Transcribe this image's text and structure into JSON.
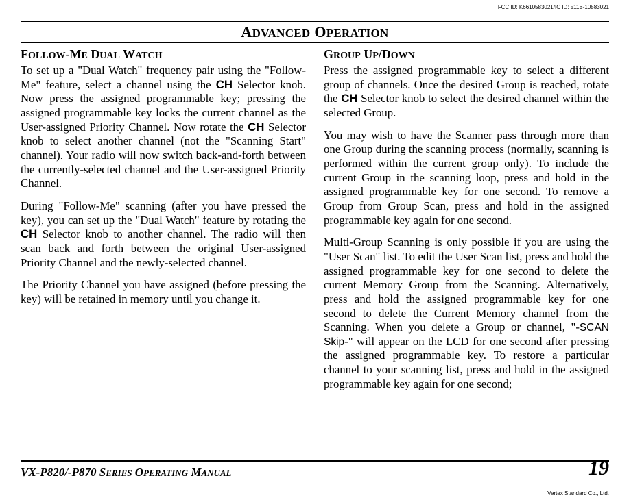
{
  "fcc": "FCC ID: K6610583021/IC ID: 511B-10583021",
  "title_main1": "A",
  "title_rest1": "DVANCED",
  "title_main2": "O",
  "title_rest2": "PERATION",
  "left": {
    "h_w1a": "F",
    "h_w1b": "OLLOW",
    "h_hy": "-M",
    "h_w2": "E",
    "h_w3a": "D",
    "h_w3b": "UAL",
    "h_w4a": "W",
    "h_w4b": "ATCH",
    "p1a": "To set up a \"Dual Watch\" frequency pair using the \"Follow-Me\" feature, select a channel using the ",
    "p1b": " Selector knob. Now press the assigned programmable key; pressing the assigned programmable key locks the current channel as the User-assigned Priority Channel. Now rotate the ",
    "p1c": " Selector knob to select another channel (not the \"Scanning Start\" channel). Your radio will now switch back-and-forth between the currently-selected channel and the User-assigned Priority Channel.",
    "p2a": "During \"Follow-Me\" scanning (after you have pressed the key), you can set up the \"Dual Watch\" feature by rotating the ",
    "p2b": " Selector knob to another channel. The radio will then scan back and forth between the original User-assigned Priority Channel and the newly-selected channel.",
    "p3": "The Priority Channel you have assigned (before pressing the key) will be retained in memory until you change it."
  },
  "right": {
    "h_w1a": "G",
    "h_w1b": "ROUP",
    "h_w2a": "U",
    "h_w2b": "P",
    "h_sl": "/D",
    "h_w3": "OWN",
    "p1a": "Press the assigned programmable key to select a different group of channels. Once the desired Group is reached, rotate the ",
    "p1b": " Selector knob to select the desired channel within the selected Group.",
    "p2": "You may wish to have the Scanner pass through more than one Group during the scanning process (normally, scanning is performed within the current group only). To include the current Group in the scanning loop, press and hold in the assigned programmable key for one second. To remove a Group from Group Scan, press and hold in the assigned programmable key again for one second.",
    "p3a": "Multi-Group Scanning is only possible if you are using the \"User Scan\" list. To edit the User Scan list, press and hold the assigned programmable key for one second to delete the current Memory Group from the Scanning. Alternatively, press and hold the assigned programmable key for one second to delete the Current Memory channel from the Scanning. When you delete a Group or channel, \"-",
    "p3b": "-\" will appear on the LCD for one second after pressing the assigned programmable key. To restore a particular channel to your scanning list, press and hold in the assigned programmable key again for one second;"
  },
  "ch": "CH",
  "lcd": "SCAN Skip",
  "manual_a": "VX-P820/-P870 S",
  "manual_b": "ERIES",
  "manual_c": " O",
  "manual_d": "PERATING",
  "manual_e": " M",
  "manual_f": "ANUAL",
  "page": "19",
  "vertex": "Vertex Standard Co., Ltd."
}
